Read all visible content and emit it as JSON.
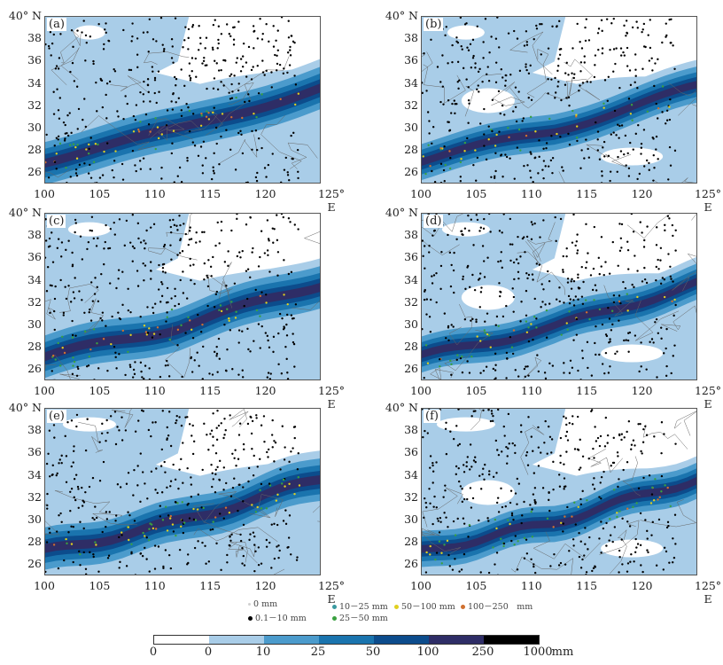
{
  "panels": [
    {
      "label": "(a)"
    },
    {
      "label": "(b)"
    },
    {
      "label": "(c)"
    },
    {
      "label": "(d)"
    },
    {
      "label": "(e)"
    },
    {
      "label": "(f)"
    }
  ],
  "axes": {
    "y_ticks": [
      "40° N",
      "38",
      "36",
      "34",
      "32",
      "30",
      "28",
      "26"
    ],
    "x_ticks": [
      "100",
      "105",
      "110",
      "115",
      "120",
      "125° E"
    ]
  },
  "legend": {
    "items": [
      {
        "label": "0 mm",
        "color": "#d0d0d0"
      },
      {
        "label": "0.1－10 mm",
        "color": "#000000"
      },
      {
        "label": "10－25 mm",
        "color": "#3a9aa0"
      },
      {
        "label": "25－50 mm",
        "color": "#3aa040"
      },
      {
        "label": "50－100 mm",
        "color": "#e0d020"
      },
      {
        "label": "100－250　mm",
        "color": "#d07030"
      }
    ]
  },
  "colorbar": {
    "labels": [
      "0",
      "0",
      "10",
      "25",
      "50",
      "100",
      "250",
      "1000"
    ],
    "unit": "mm",
    "colors": [
      "#ffffff",
      "#a9cde8",
      "#4b9bcc",
      "#1a74ae",
      "#0c4c8c",
      "#2e2d66",
      "#000000"
    ]
  }
}
